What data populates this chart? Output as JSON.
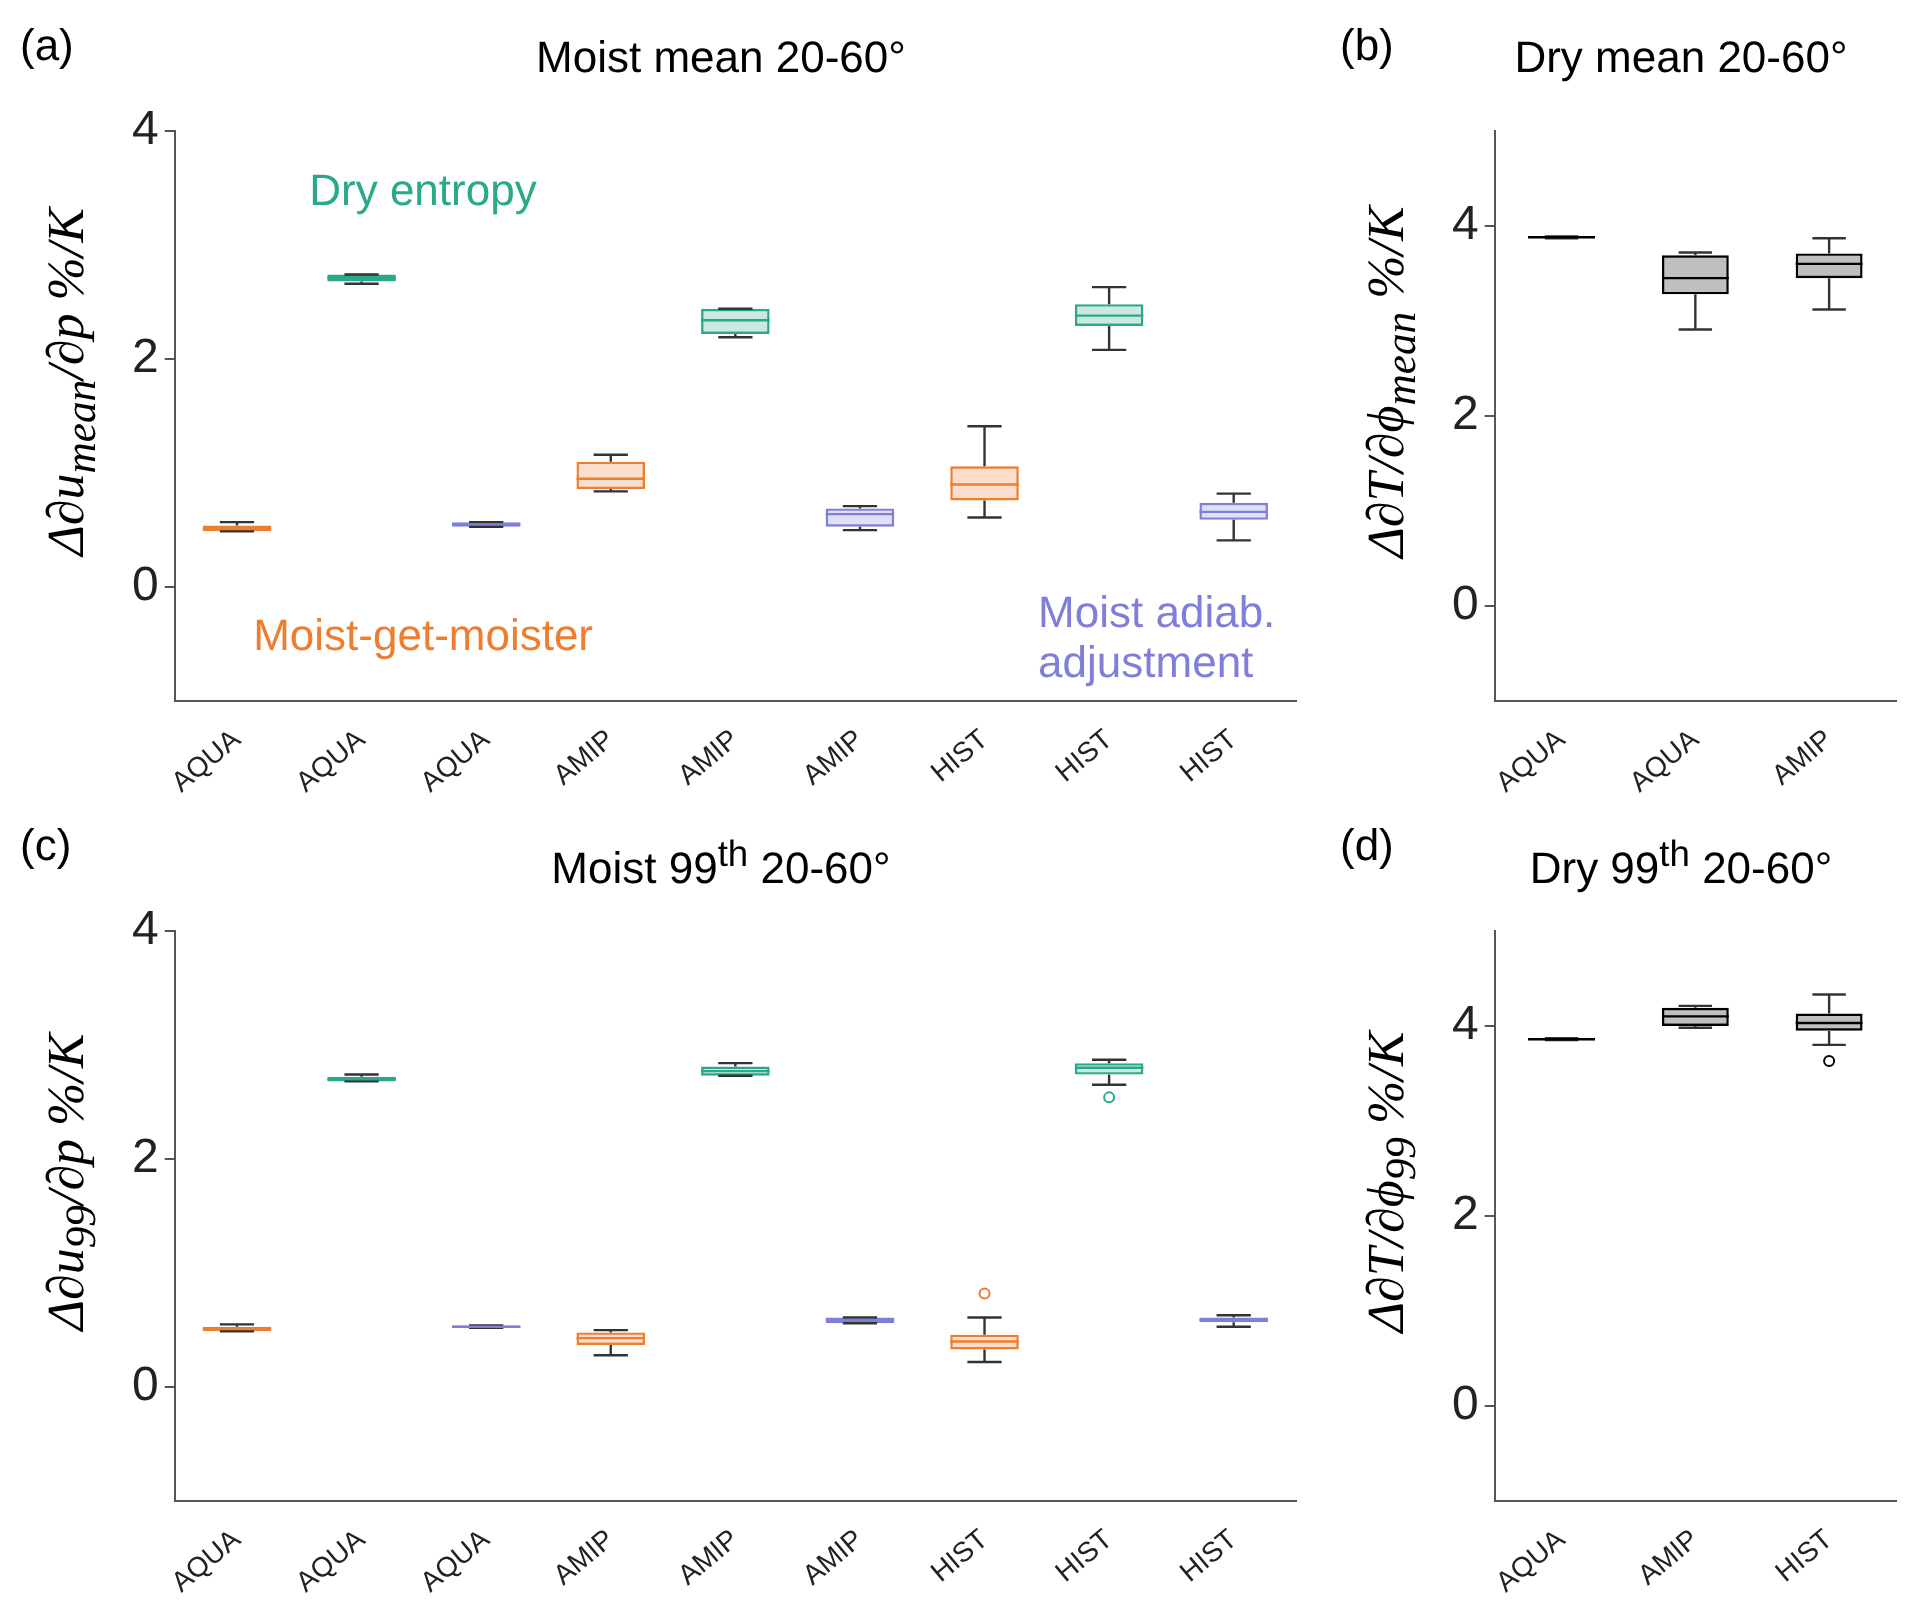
{
  "chart_data": [
    {
      "type": "box",
      "title": "Moist mean 20-60°",
      "ylabel": "Δ∂u$_{mean}$/∂p %/K",
      "annotations": [
        "(a)"
      ],
      "categories": [
        "AQUA",
        "AQUA",
        "AQUA",
        "AMIP",
        "AMIP",
        "AMIP",
        "HIST",
        "HIST",
        "HIST"
      ],
      "ylim": [
        -1,
        4
      ],
      "yticks": [
        0,
        2,
        4
      ],
      "series": [
        {
          "name": "Moist-get-moister",
          "color": "#ee7d2f",
          "boxes": [
            {
              "low": 0.49,
              "q1": 0.49,
              "median": 0.51,
              "q3": 0.54,
              "high": 0.57
            },
            null,
            null,
            {
              "low": 0.84,
              "q1": 0.86,
              "median": 0.95,
              "q3": 1.1,
              "high": 1.16
            },
            null,
            null,
            {
              "low": 0.61,
              "q1": 0.76,
              "median": 0.9,
              "q3": 1.06,
              "high": 1.41
            },
            null,
            null
          ]
        },
        {
          "name": "Dry entropy",
          "color": "#2aa88a",
          "boxes": [
            null,
            {
              "low": 2.66,
              "q1": 2.68,
              "median": 2.71,
              "q3": 2.74,
              "high": 2.74
            },
            null,
            null,
            {
              "low": 2.19,
              "q1": 2.22,
              "median": 2.34,
              "q3": 2.44,
              "high": 2.44
            },
            null,
            null,
            {
              "low": 2.08,
              "q1": 2.29,
              "median": 2.38,
              "q3": 2.48,
              "high": 2.63
            },
            null
          ]
        },
        {
          "name": "Moist adiab. adjustment",
          "color": "#7f7fd9",
          "boxes": [
            null,
            null,
            {
              "low": 0.53,
              "q1": 0.53,
              "median": 0.55,
              "q3": 0.57,
              "high": 0.57
            },
            null,
            null,
            {
              "low": 0.5,
              "q1": 0.53,
              "median": 0.64,
              "q3": 0.69,
              "high": 0.71
            },
            null,
            null,
            {
              "low": 0.41,
              "q1": 0.59,
              "median": 0.66,
              "q3": 0.74,
              "high": 0.82
            }
          ]
        }
      ]
    },
    {
      "type": "box",
      "title": "Dry mean 20-60°",
      "ylabel": "Δ∂T/∂ϕ$_{mean}$ %/K",
      "annotations": [
        "(b)"
      ],
      "categories": [
        "AQUA",
        "AQUA",
        "AMIP"
      ],
      "ylim": [
        -1,
        5
      ],
      "yticks": [
        0,
        2,
        4
      ],
      "series": [
        {
          "color": "#000000",
          "boxes": [
            {
              "low": 3.87,
              "q1": 3.87,
              "median": 3.88,
              "q3": 3.89,
              "high": 3.89
            },
            {
              "low": 2.91,
              "q1": 3.28,
              "median": 3.45,
              "q3": 3.69,
              "high": 3.72
            },
            {
              "low": 3.12,
              "q1": 3.45,
              "median": 3.6,
              "q3": 3.71,
              "high": 3.87
            }
          ]
        }
      ]
    },
    {
      "type": "box",
      "title": "Moist 99$^{th}$ 20-60°",
      "ylabel": "Δ∂u$_{99}$/∂p %/K",
      "annotations": [
        "(c)"
      ],
      "categories": [
        "AQUA",
        "AQUA",
        "AQUA",
        "AMIP",
        "AMIP",
        "AMIP",
        "HIST",
        "HIST",
        "HIST"
      ],
      "ylim": [
        -1,
        4
      ],
      "yticks": [
        0,
        2,
        4
      ],
      "series": [
        {
          "color": "#ee7d2f",
          "boxes": [
            {
              "low": 0.49,
              "q1": 0.49,
              "median": 0.51,
              "q3": 0.53,
              "high": 0.55
            },
            null,
            null,
            {
              "low": 0.28,
              "q1": 0.37,
              "median": 0.43,
              "q3": 0.48,
              "high": 0.5
            },
            null,
            null,
            {
              "low": 0.22,
              "q1": 0.33,
              "median": 0.4,
              "q3": 0.46,
              "high": 0.61,
              "outliers": [
                0.82
              ]
            },
            null,
            null
          ]
        },
        {
          "color": "#2aa88a",
          "boxes": [
            null,
            {
              "low": 2.68,
              "q1": 2.68,
              "median": 2.7,
              "q3": 2.72,
              "high": 2.74
            },
            null,
            null,
            {
              "low": 2.73,
              "q1": 2.73,
              "median": 2.77,
              "q3": 2.81,
              "high": 2.84
            },
            null,
            null,
            {
              "low": 2.65,
              "q1": 2.74,
              "median": 2.8,
              "q3": 2.84,
              "high": 2.87,
              "outliers": [
                2.54
              ]
            },
            null
          ]
        },
        {
          "color": "#7f7fd9",
          "boxes": [
            null,
            null,
            {
              "low": 0.52,
              "q1": 0.52,
              "median": 0.53,
              "q3": 0.54,
              "high": 0.54
            },
            null,
            null,
            {
              "low": 0.56,
              "q1": 0.56,
              "median": 0.59,
              "q3": 0.61,
              "high": 0.61
            },
            null,
            null,
            {
              "low": 0.53,
              "q1": 0.57,
              "median": 0.59,
              "q3": 0.61,
              "high": 0.63
            }
          ]
        }
      ]
    },
    {
      "type": "box",
      "title": "Dry 99$^{th}$ 20-60°",
      "ylabel": "Δ∂T/∂ϕ$_{99}$ %/K",
      "annotations": [
        "(d)"
      ],
      "categories": [
        "AQUA",
        "AMIP",
        "HIST"
      ],
      "ylim": [
        -1,
        5
      ],
      "yticks": [
        0,
        2,
        4
      ],
      "series": [
        {
          "color": "#000000",
          "boxes": [
            {
              "low": 3.85,
              "q1": 3.85,
              "median": 3.86,
              "q3": 3.87,
              "high": 3.87
            },
            {
              "low": 3.98,
              "q1": 4.0,
              "median": 4.1,
              "q3": 4.19,
              "high": 4.21
            },
            {
              "low": 3.8,
              "q1": 3.95,
              "median": 4.03,
              "q3": 4.13,
              "high": 4.33,
              "outliers": [
                3.63
              ]
            }
          ]
        }
      ]
    }
  ]
}
